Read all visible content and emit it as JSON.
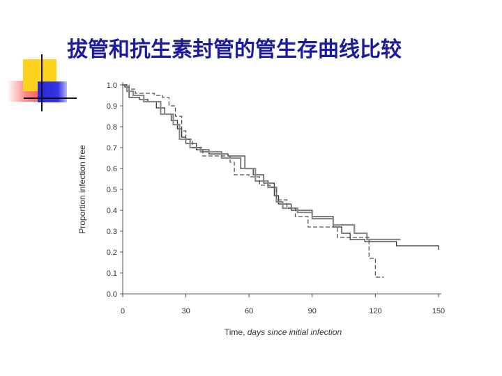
{
  "slide": {
    "title": "拔管和抗生素封管的管生存曲线比较"
  },
  "chart_data": {
    "type": "line",
    "subtype": "kaplan-meier step curve",
    "xlabel_plain": "Time, ",
    "xlabel_italic": "days since initial infection",
    "ylabel": "Proportion infection free",
    "xlim": [
      0,
      150
    ],
    "ylim": [
      0,
      1.0
    ],
    "x_ticks": [
      0,
      30,
      60,
      90,
      120,
      150
    ],
    "y_ticks": [
      "0.0",
      "0.1",
      "0.2",
      "0.3",
      "0.4",
      "0.5",
      "0.6",
      "0.7",
      "0.8",
      "0.9",
      "1.0"
    ],
    "grid": false,
    "series": [
      {
        "style": "solid-dark",
        "color": "#333333",
        "x": [
          0,
          1,
          3,
          8,
          12,
          16,
          20,
          23,
          26,
          28,
          30,
          35,
          41,
          50,
          58,
          62,
          67,
          72,
          74,
          80,
          90,
          100,
          104,
          108,
          115,
          130,
          150
        ],
        "y": [
          1.0,
          0.99,
          0.94,
          0.93,
          0.92,
          0.89,
          0.86,
          0.83,
          0.79,
          0.75,
          0.72,
          0.69,
          0.67,
          0.66,
          0.6,
          0.57,
          0.53,
          0.47,
          0.43,
          0.4,
          0.37,
          0.32,
          0.29,
          0.26,
          0.25,
          0.23,
          0.21
        ]
      },
      {
        "style": "solid-gray",
        "color": "#8a8a8a",
        "x": [
          0,
          2,
          5,
          10,
          18,
          24,
          27,
          32,
          37,
          47,
          56,
          63,
          69,
          73,
          76,
          83,
          90,
          100,
          110,
          116,
          132
        ],
        "y": [
          1.0,
          0.97,
          0.95,
          0.92,
          0.86,
          0.81,
          0.74,
          0.7,
          0.68,
          0.65,
          0.6,
          0.54,
          0.51,
          0.44,
          0.41,
          0.39,
          0.36,
          0.33,
          0.29,
          0.26,
          0.26
        ]
      },
      {
        "style": "dashed",
        "color": "#555555",
        "x": [
          0,
          3,
          6,
          15,
          19,
          22,
          25,
          28,
          30,
          33,
          38,
          51,
          53,
          60,
          65,
          70,
          73,
          78,
          82,
          88,
          102,
          117,
          120,
          124
        ],
        "y": [
          1.0,
          0.98,
          0.96,
          0.95,
          0.94,
          0.9,
          0.85,
          0.78,
          0.74,
          0.7,
          0.66,
          0.63,
          0.57,
          0.56,
          0.52,
          0.51,
          0.45,
          0.41,
          0.37,
          0.32,
          0.27,
          0.17,
          0.08,
          0.08
        ]
      }
    ]
  }
}
